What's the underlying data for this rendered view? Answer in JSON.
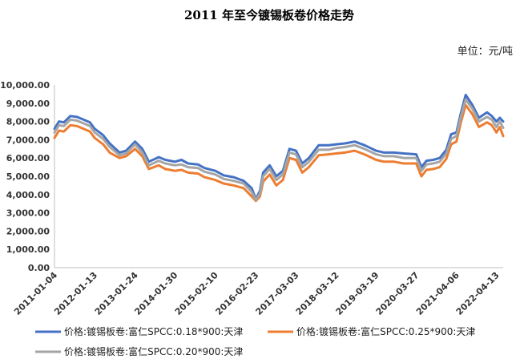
{
  "chart_data": {
    "type": "line",
    "title": "2011 年至今镀锡板卷价格走势",
    "unit_label": "单位：元/吨",
    "ylim": [
      0,
      10000
    ],
    "y_ticks": [
      "0.00",
      "1,000.00",
      "2,000.00",
      "3,000.00",
      "4,000.00",
      "5,000.00",
      "6,000.00",
      "7,000.00",
      "8,000.00",
      "9,000.00",
      "10,000.00"
    ],
    "x_ticks": [
      "2011-01-04",
      "2012-01-13",
      "2013-01-24",
      "2014-01-30",
      "2015-02-10",
      "2016-02-23",
      "2017-03-03",
      "2018-03-12",
      "2019-03-19",
      "2020-03-27",
      "2021-04-06",
      "2022-04-13"
    ],
    "grid": false,
    "legend_position": "bottom",
    "x": [
      "2011-01-04",
      "2011-02-15",
      "2011-04-01",
      "2011-06-01",
      "2011-08-01",
      "2011-10-01",
      "2011-12-01",
      "2012-01-13",
      "2012-04-01",
      "2012-06-01",
      "2012-09-01",
      "2012-11-01",
      "2013-01-24",
      "2013-04-01",
      "2013-06-01",
      "2013-09-01",
      "2013-11-01",
      "2014-01-30",
      "2014-04-01",
      "2014-06-01",
      "2014-09-01",
      "2014-11-01",
      "2015-02-10",
      "2015-05-01",
      "2015-08-01",
      "2015-11-01",
      "2016-01-15",
      "2016-02-23",
      "2016-04-01",
      "2016-05-01",
      "2016-07-01",
      "2016-09-01",
      "2016-11-01",
      "2017-01-01",
      "2017-03-03",
      "2017-05-01",
      "2017-07-01",
      "2017-10-01",
      "2018-01-01",
      "2018-03-12",
      "2018-06-01",
      "2018-09-01",
      "2018-12-01",
      "2019-03-19",
      "2019-06-01",
      "2019-09-01",
      "2019-12-01",
      "2020-03-27",
      "2020-05-15",
      "2020-07-01",
      "2020-09-01",
      "2020-11-01",
      "2021-01-01",
      "2021-02-15",
      "2021-04-06",
      "2021-05-15",
      "2021-07-01",
      "2021-09-01",
      "2021-11-01",
      "2022-01-15",
      "2022-03-01",
      "2022-04-13",
      "2022-05-15",
      "2022-06-15"
    ],
    "series": [
      {
        "name": "价格:镀锡板卷:富仁SPCC:0.18*900:天津",
        "color": "#4472C4",
        "values": [
          7600,
          8000,
          7950,
          8300,
          8250,
          8100,
          7950,
          7600,
          7250,
          6800,
          6300,
          6400,
          6900,
          6500,
          5800,
          6050,
          5900,
          5800,
          5900,
          5700,
          5650,
          5450,
          5300,
          5050,
          4950,
          4750,
          4350,
          3750,
          4200,
          5200,
          5600,
          5000,
          5300,
          6500,
          6400,
          5700,
          6000,
          6700,
          6700,
          6750,
          6800,
          6900,
          6700,
          6400,
          6300,
          6300,
          6250,
          6200,
          5500,
          5850,
          5900,
          6000,
          6450,
          7300,
          7400,
          8400,
          9450,
          8900,
          8200,
          8500,
          8300,
          8000,
          8200,
          8000
        ]
      },
      {
        "name": "价格:镀锡板卷:富仁SPCC:0.25*900:天津",
        "color": "#ED7D31",
        "values": [
          7100,
          7500,
          7450,
          7800,
          7750,
          7600,
          7450,
          7100,
          6750,
          6300,
          6000,
          6100,
          6500,
          6100,
          5400,
          5600,
          5400,
          5300,
          5350,
          5200,
          5150,
          4950,
          4800,
          4600,
          4500,
          4350,
          3900,
          3650,
          3900,
          4700,
          5100,
          4500,
          4800,
          6000,
          5900,
          5200,
          5500,
          6150,
          6200,
          6250,
          6300,
          6400,
          6200,
          5900,
          5800,
          5800,
          5700,
          5700,
          5000,
          5350,
          5400,
          5500,
          5950,
          6750,
          6900,
          7900,
          8900,
          8400,
          7700,
          7950,
          7800,
          7400,
          7700,
          7200
        ]
      },
      {
        "name": "价格:镀锡板卷:富仁SPCC:0.20*900:天津",
        "color": "#A5A5A5",
        "values": [
          7400,
          7800,
          7750,
          8100,
          8050,
          7900,
          7750,
          7400,
          7050,
          6600,
          6150,
          6250,
          6750,
          6300,
          5600,
          5850,
          5700,
          5600,
          5650,
          5500,
          5450,
          5250,
          5100,
          4850,
          4750,
          4600,
          4150,
          3700,
          4050,
          5000,
          5400,
          4800,
          5100,
          6300,
          6200,
          5500,
          5800,
          6450,
          6450,
          6550,
          6600,
          6700,
          6500,
          6200,
          6100,
          6100,
          6000,
          6000,
          5300,
          5650,
          5700,
          5800,
          6250,
          7050,
          7200,
          8200,
          9200,
          8700,
          8000,
          8250,
          8100,
          7700,
          8000,
          7650
        ]
      }
    ]
  }
}
